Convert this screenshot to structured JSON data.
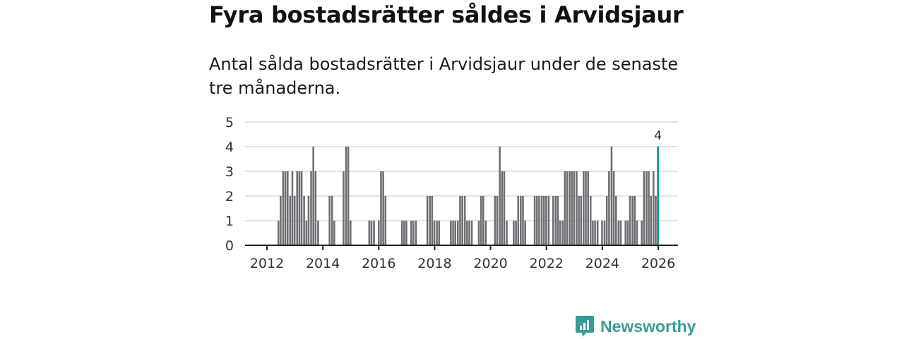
{
  "header": {
    "title": "Fyra bostadsrätter såldes i Arvidsjaur",
    "subtitle": "Antal sålda bostadsrätter i Arvidsjaur under de senaste tre månaderna."
  },
  "brand": {
    "name": "Newsworthy",
    "icon": "newsworthy-logo-icon",
    "color": "#3a9b96"
  },
  "colors": {
    "bar": "#6e6e73",
    "highlight": "#1a9a96",
    "grid": "#d9d9d9",
    "axis": "#222222",
    "text": "#333333"
  },
  "chart_data": {
    "type": "bar",
    "title": "Fyra bostadsrätter såldes i Arvidsjaur",
    "xlabel": "",
    "ylabel": "",
    "ylim": [
      0,
      5
    ],
    "yticks": [
      0,
      1,
      2,
      3,
      4,
      5
    ],
    "xlim": [
      2011.0,
      2026.3
    ],
    "xticks": [
      2012,
      2014,
      2016,
      2018,
      2020,
      2022,
      2024,
      2026
    ],
    "grid": true,
    "bar_width_years": 0.065,
    "bars": [
      {
        "x": 2012.41,
        "y": 1
      },
      {
        "x": 2012.49,
        "y": 2
      },
      {
        "x": 2012.58,
        "y": 3
      },
      {
        "x": 2012.66,
        "y": 3
      },
      {
        "x": 2012.74,
        "y": 3
      },
      {
        "x": 2012.83,
        "y": 2
      },
      {
        "x": 2012.91,
        "y": 3
      },
      {
        "x": 2012.99,
        "y": 2
      },
      {
        "x": 2013.08,
        "y": 3
      },
      {
        "x": 2013.16,
        "y": 3
      },
      {
        "x": 2013.24,
        "y": 3
      },
      {
        "x": 2013.33,
        "y": 2
      },
      {
        "x": 2013.41,
        "y": 1
      },
      {
        "x": 2013.49,
        "y": 2
      },
      {
        "x": 2013.58,
        "y": 3
      },
      {
        "x": 2013.66,
        "y": 4
      },
      {
        "x": 2013.74,
        "y": 3
      },
      {
        "x": 2013.83,
        "y": 1
      },
      {
        "x": 2014.24,
        "y": 2
      },
      {
        "x": 2014.33,
        "y": 2
      },
      {
        "x": 2014.41,
        "y": 1
      },
      {
        "x": 2014.74,
        "y": 3
      },
      {
        "x": 2014.83,
        "y": 4
      },
      {
        "x": 2014.91,
        "y": 4
      },
      {
        "x": 2014.99,
        "y": 1
      },
      {
        "x": 2015.66,
        "y": 1
      },
      {
        "x": 2015.74,
        "y": 1
      },
      {
        "x": 2015.83,
        "y": 1
      },
      {
        "x": 2016.0,
        "y": 1
      },
      {
        "x": 2016.08,
        "y": 3
      },
      {
        "x": 2016.16,
        "y": 3
      },
      {
        "x": 2016.24,
        "y": 2
      },
      {
        "x": 2016.83,
        "y": 1
      },
      {
        "x": 2016.91,
        "y": 1
      },
      {
        "x": 2016.99,
        "y": 1
      },
      {
        "x": 2017.16,
        "y": 1
      },
      {
        "x": 2017.24,
        "y": 1
      },
      {
        "x": 2017.33,
        "y": 1
      },
      {
        "x": 2017.74,
        "y": 2
      },
      {
        "x": 2017.83,
        "y": 2
      },
      {
        "x": 2017.91,
        "y": 2
      },
      {
        "x": 2017.99,
        "y": 1
      },
      {
        "x": 2018.08,
        "y": 1
      },
      {
        "x": 2018.16,
        "y": 1
      },
      {
        "x": 2018.58,
        "y": 1
      },
      {
        "x": 2018.66,
        "y": 1
      },
      {
        "x": 2018.74,
        "y": 1
      },
      {
        "x": 2018.83,
        "y": 1
      },
      {
        "x": 2018.91,
        "y": 2
      },
      {
        "x": 2018.99,
        "y": 2
      },
      {
        "x": 2019.08,
        "y": 2
      },
      {
        "x": 2019.16,
        "y": 1
      },
      {
        "x": 2019.24,
        "y": 1
      },
      {
        "x": 2019.33,
        "y": 1
      },
      {
        "x": 2019.58,
        "y": 1
      },
      {
        "x": 2019.66,
        "y": 2
      },
      {
        "x": 2019.74,
        "y": 2
      },
      {
        "x": 2019.83,
        "y": 1
      },
      {
        "x": 2020.16,
        "y": 2
      },
      {
        "x": 2020.24,
        "y": 2
      },
      {
        "x": 2020.33,
        "y": 4
      },
      {
        "x": 2020.41,
        "y": 3
      },
      {
        "x": 2020.49,
        "y": 3
      },
      {
        "x": 2020.58,
        "y": 1
      },
      {
        "x": 2020.83,
        "y": 1
      },
      {
        "x": 2020.91,
        "y": 1
      },
      {
        "x": 2020.99,
        "y": 2
      },
      {
        "x": 2021.08,
        "y": 2
      },
      {
        "x": 2021.16,
        "y": 2
      },
      {
        "x": 2021.24,
        "y": 1
      },
      {
        "x": 2021.58,
        "y": 2
      },
      {
        "x": 2021.66,
        "y": 2
      },
      {
        "x": 2021.74,
        "y": 2
      },
      {
        "x": 2021.83,
        "y": 2
      },
      {
        "x": 2021.91,
        "y": 2
      },
      {
        "x": 2021.99,
        "y": 2
      },
      {
        "x": 2022.08,
        "y": 2
      },
      {
        "x": 2022.24,
        "y": 2
      },
      {
        "x": 2022.33,
        "y": 2
      },
      {
        "x": 2022.41,
        "y": 2
      },
      {
        "x": 2022.49,
        "y": 1
      },
      {
        "x": 2022.58,
        "y": 1
      },
      {
        "x": 2022.66,
        "y": 3
      },
      {
        "x": 2022.74,
        "y": 3
      },
      {
        "x": 2022.83,
        "y": 3
      },
      {
        "x": 2022.91,
        "y": 3
      },
      {
        "x": 2022.99,
        "y": 3
      },
      {
        "x": 2023.08,
        "y": 3
      },
      {
        "x": 2023.16,
        "y": 2
      },
      {
        "x": 2023.24,
        "y": 2
      },
      {
        "x": 2023.33,
        "y": 3
      },
      {
        "x": 2023.41,
        "y": 3
      },
      {
        "x": 2023.49,
        "y": 3
      },
      {
        "x": 2023.58,
        "y": 2
      },
      {
        "x": 2023.66,
        "y": 1
      },
      {
        "x": 2023.74,
        "y": 1
      },
      {
        "x": 2023.83,
        "y": 1
      },
      {
        "x": 2023.99,
        "y": 1
      },
      {
        "x": 2024.08,
        "y": 1
      },
      {
        "x": 2024.16,
        "y": 2
      },
      {
        "x": 2024.24,
        "y": 3
      },
      {
        "x": 2024.33,
        "y": 4
      },
      {
        "x": 2024.41,
        "y": 3
      },
      {
        "x": 2024.49,
        "y": 2
      },
      {
        "x": 2024.58,
        "y": 1
      },
      {
        "x": 2024.66,
        "y": 1
      },
      {
        "x": 2024.83,
        "y": 1
      },
      {
        "x": 2024.91,
        "y": 1
      },
      {
        "x": 2024.99,
        "y": 2
      },
      {
        "x": 2025.08,
        "y": 2
      },
      {
        "x": 2025.16,
        "y": 2
      },
      {
        "x": 2025.24,
        "y": 1
      },
      {
        "x": 2025.41,
        "y": 1
      },
      {
        "x": 2025.49,
        "y": 3
      },
      {
        "x": 2025.58,
        "y": 3
      },
      {
        "x": 2025.66,
        "y": 3
      },
      {
        "x": 2025.74,
        "y": 2
      },
      {
        "x": 2025.83,
        "y": 3
      },
      {
        "x": 2025.91,
        "y": 2
      },
      {
        "x": 2025.99,
        "y": 4,
        "highlight": true
      }
    ],
    "annotation": {
      "x": 2025.99,
      "y": 4,
      "label": "4"
    }
  }
}
